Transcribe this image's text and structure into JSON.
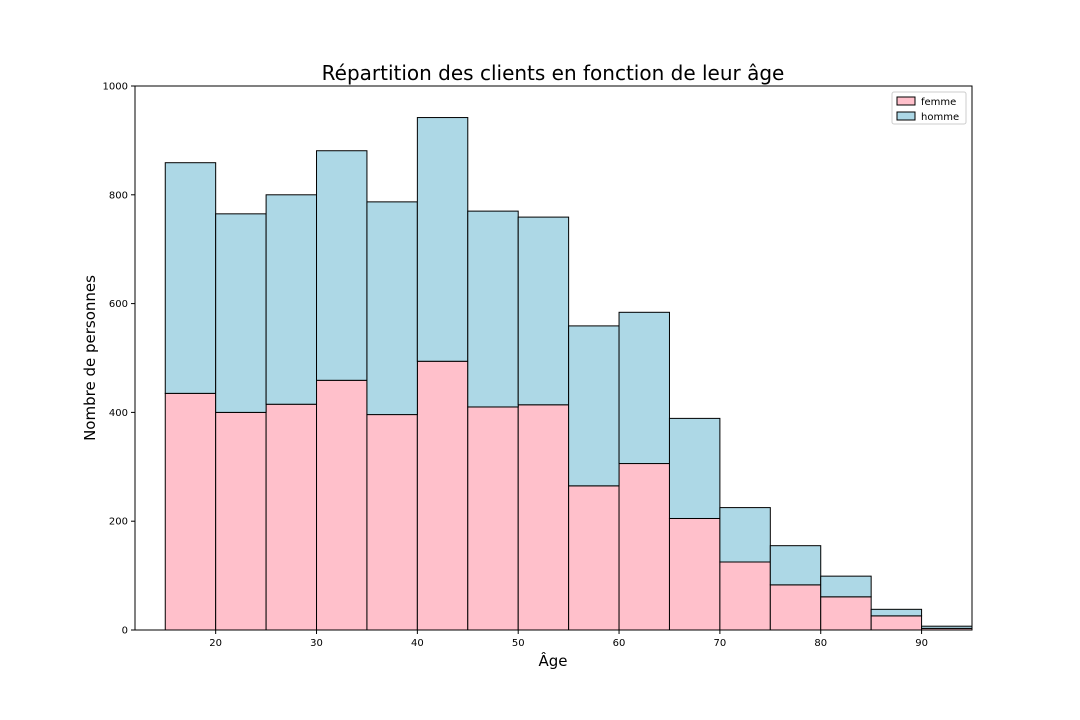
{
  "chart_data": {
    "type": "bar",
    "stacked": true,
    "histogram": true,
    "title": "Répartition des clients en fonction de leur âge",
    "xlabel": "Âge",
    "ylabel": "Nombre de personnes",
    "xlim": [
      12,
      95
    ],
    "ylim": [
      0,
      1000
    ],
    "x_ticks": [
      20,
      30,
      40,
      50,
      60,
      70,
      80,
      90
    ],
    "y_ticks": [
      0,
      200,
      400,
      600,
      800,
      1000
    ],
    "bin_edges": [
      15,
      20,
      25,
      30,
      35,
      40,
      45,
      50,
      55,
      60,
      65,
      70,
      75,
      80,
      85,
      90,
      95
    ],
    "series": [
      {
        "name": "femme",
        "color": "#ffc0cb",
        "values": [
          435,
          400,
          415,
          459,
          396,
          494,
          410,
          414,
          265,
          306,
          205,
          125,
          83,
          61,
          26,
          3
        ]
      },
      {
        "name": "homme",
        "color": "#add8e6",
        "values": [
          424,
          365,
          385,
          422,
          391,
          448,
          360,
          345,
          294,
          278,
          184,
          100,
          72,
          38,
          12,
          4
        ]
      }
    ],
    "legend": {
      "position": "top-right",
      "entries": [
        "femme",
        "homme"
      ]
    },
    "grid": false
  }
}
